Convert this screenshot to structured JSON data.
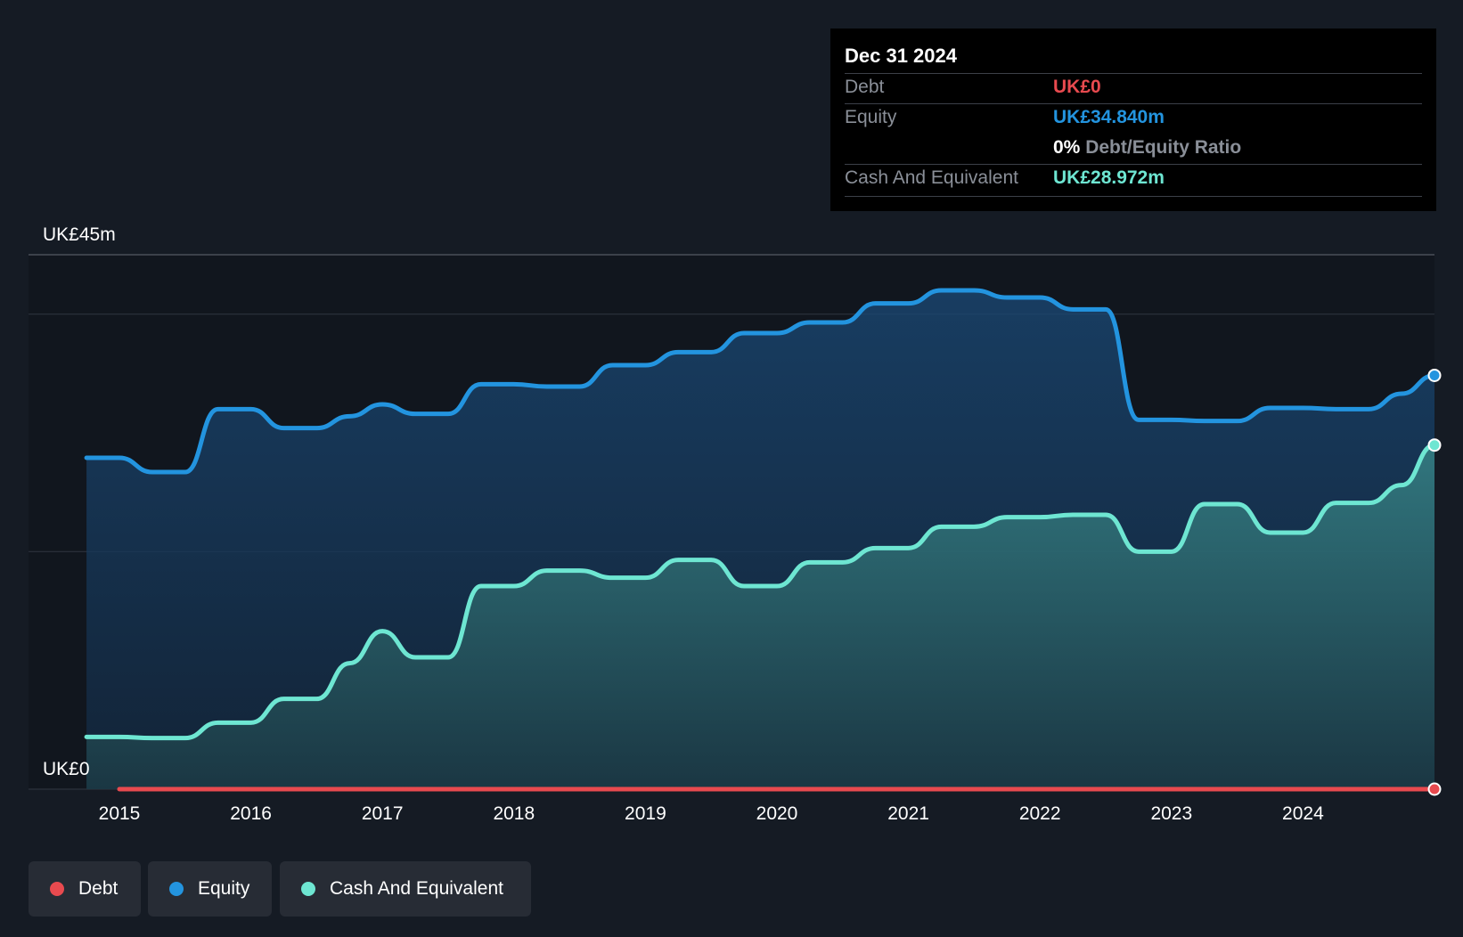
{
  "tooltip": {
    "date": "Dec 31 2024",
    "debt_label": "Debt",
    "debt_value": "UK£0",
    "equity_label": "Equity",
    "equity_value": "UK£34.840m",
    "ratio_pct": "0%",
    "ratio_label": "Debt/Equity Ratio",
    "cash_label": "Cash And Equivalent",
    "cash_value": "UK£28.972m"
  },
  "legend": [
    {
      "label": "Debt",
      "color": "#e84a4f"
    },
    {
      "label": "Equity",
      "color": "#2394df"
    },
    {
      "label": "Cash And Equivalent",
      "color": "#6ee6d2"
    }
  ],
  "colors": {
    "debt": "#e84a4f",
    "equity": "#2394df",
    "cash": "#6ee6d2",
    "background": "#151b24"
  },
  "chart_data": {
    "type": "area",
    "ylim": [
      0,
      45
    ],
    "y_labels": [
      "UK£45m",
      "UK£0"
    ],
    "x_ticks": [
      "2015",
      "2016",
      "2017",
      "2018",
      "2019",
      "2020",
      "2021",
      "2022",
      "2023",
      "2024"
    ],
    "grid": true,
    "series": [
      {
        "name": "Equity",
        "points": [
          [
            2014.75,
            27.9
          ],
          [
            2015.0,
            27.9
          ],
          [
            2015.25,
            26.7
          ],
          [
            2015.5,
            26.7
          ],
          [
            2015.75,
            32.0
          ],
          [
            2016.0,
            32.0
          ],
          [
            2016.25,
            30.4
          ],
          [
            2016.5,
            30.4
          ],
          [
            2016.75,
            31.4
          ],
          [
            2017.0,
            32.4
          ],
          [
            2017.25,
            31.6
          ],
          [
            2017.5,
            31.6
          ],
          [
            2017.75,
            34.1
          ],
          [
            2018.0,
            34.1
          ],
          [
            2018.25,
            33.9
          ],
          [
            2018.5,
            33.9
          ],
          [
            2018.75,
            35.7
          ],
          [
            2019.0,
            35.7
          ],
          [
            2019.25,
            36.8
          ],
          [
            2019.5,
            36.8
          ],
          [
            2019.75,
            38.4
          ],
          [
            2020.0,
            38.4
          ],
          [
            2020.25,
            39.3
          ],
          [
            2020.5,
            39.3
          ],
          [
            2020.75,
            40.9
          ],
          [
            2021.0,
            40.9
          ],
          [
            2021.25,
            42.0
          ],
          [
            2021.5,
            42.0
          ],
          [
            2021.75,
            41.4
          ],
          [
            2022.0,
            41.4
          ],
          [
            2022.25,
            40.4
          ],
          [
            2022.5,
            40.4
          ],
          [
            2022.75,
            31.1
          ],
          [
            2023.0,
            31.1
          ],
          [
            2023.25,
            31.0
          ],
          [
            2023.5,
            31.0
          ],
          [
            2023.75,
            32.1
          ],
          [
            2024.0,
            32.1
          ],
          [
            2024.25,
            32.0
          ],
          [
            2024.5,
            32.0
          ],
          [
            2024.75,
            33.3
          ],
          [
            2025.0,
            34.84
          ]
        ]
      },
      {
        "name": "Cash And Equivalent",
        "points": [
          [
            2014.75,
            4.4
          ],
          [
            2015.0,
            4.4
          ],
          [
            2015.25,
            4.3
          ],
          [
            2015.5,
            4.3
          ],
          [
            2015.75,
            5.6
          ],
          [
            2016.0,
            5.6
          ],
          [
            2016.25,
            7.6
          ],
          [
            2016.5,
            7.6
          ],
          [
            2016.75,
            10.6
          ],
          [
            2017.0,
            13.3
          ],
          [
            2017.25,
            11.1
          ],
          [
            2017.5,
            11.1
          ],
          [
            2017.75,
            17.1
          ],
          [
            2018.0,
            17.1
          ],
          [
            2018.25,
            18.4
          ],
          [
            2018.5,
            18.4
          ],
          [
            2018.75,
            17.8
          ],
          [
            2019.0,
            17.8
          ],
          [
            2019.25,
            19.3
          ],
          [
            2019.5,
            19.3
          ],
          [
            2019.75,
            17.1
          ],
          [
            2020.0,
            17.1
          ],
          [
            2020.25,
            19.1
          ],
          [
            2020.5,
            19.1
          ],
          [
            2020.75,
            20.3
          ],
          [
            2021.0,
            20.3
          ],
          [
            2021.25,
            22.1
          ],
          [
            2021.5,
            22.1
          ],
          [
            2021.75,
            22.9
          ],
          [
            2022.0,
            22.9
          ],
          [
            2022.25,
            23.1
          ],
          [
            2022.5,
            23.1
          ],
          [
            2022.75,
            20.0
          ],
          [
            2023.0,
            20.0
          ],
          [
            2023.25,
            24.0
          ],
          [
            2023.5,
            24.0
          ],
          [
            2023.75,
            21.6
          ],
          [
            2024.0,
            21.6
          ],
          [
            2024.25,
            24.1
          ],
          [
            2024.5,
            24.1
          ],
          [
            2024.75,
            25.6
          ],
          [
            2025.0,
            28.972
          ]
        ]
      },
      {
        "name": "Debt",
        "points": [
          [
            2015.0,
            0
          ],
          [
            2025.0,
            0
          ]
        ]
      }
    ]
  }
}
